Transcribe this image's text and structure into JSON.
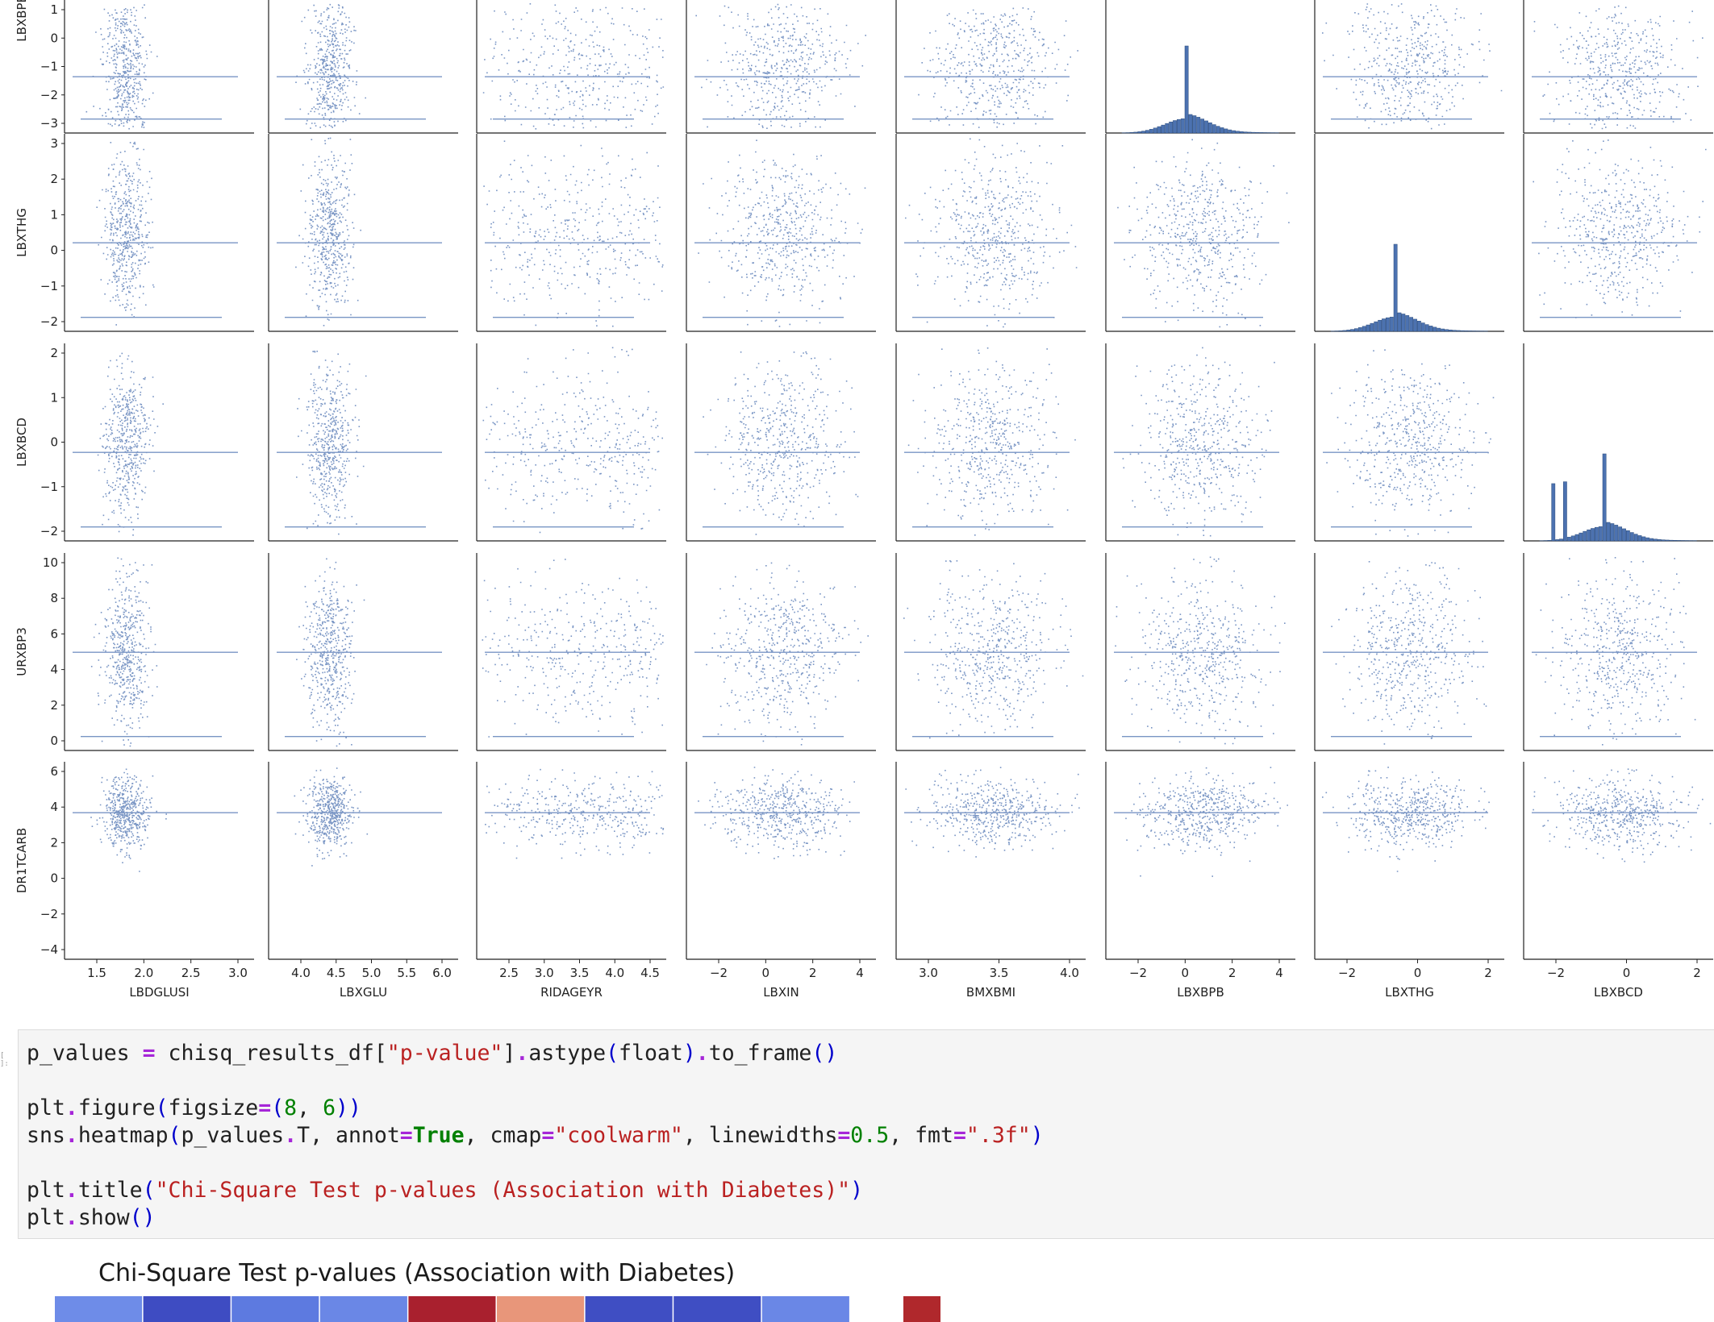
{
  "pairplot": {
    "x_labels": [
      "LBDGLUSI",
      "LBXGLU",
      "RIDAGEYR",
      "LBXIN",
      "BMXBMI",
      "LBXBPB",
      "LBXTHG",
      "LBXBCD"
    ],
    "y_labels": [
      "LBXBPB",
      "LBXTHG",
      "LBXBCD",
      "URXBP3",
      "DR1TCARB"
    ],
    "x_ticks": [
      [
        "1.5",
        "2.0",
        "2.5",
        "3.0"
      ],
      [
        "4.0",
        "4.5",
        "5.0",
        "5.5",
        "6.0"
      ],
      [
        "2.5",
        "3.0",
        "3.5",
        "4.0",
        "4.5"
      ],
      [
        "−2",
        "0",
        "2",
        "4"
      ],
      [
        "3.0",
        "3.5",
        "4.0"
      ],
      [
        "−2",
        "0",
        "2",
        "4"
      ],
      [
        "−2",
        "0",
        "2"
      ],
      [
        "−2",
        "0",
        "2"
      ]
    ],
    "y_ticks": [
      [
        "1",
        "0",
        "−1",
        "−2",
        "−3"
      ],
      [
        "3",
        "2",
        "1",
        "0",
        "−1",
        "−2"
      ],
      [
        "2",
        "1",
        "0",
        "−1",
        "−2"
      ],
      [
        "10",
        "8",
        "6",
        "4",
        "2",
        "0"
      ],
      [
        "6",
        "4",
        "2",
        "0",
        "−2",
        "−4"
      ]
    ],
    "point_color": "#4c72b0"
  },
  "code_cell": {
    "marker": "[ ]:",
    "line1": {
      "var": "p_values",
      "op": "=",
      "obj": "chisq_results_df",
      "key": "\"p-value\"",
      "m1": "astype",
      "arg": "float",
      "m2": "to_frame"
    },
    "line2": {
      "mod": "plt",
      "fn": "figure",
      "kw": "figsize",
      "v1": "8",
      "v2": "6"
    },
    "line3": {
      "mod": "sns",
      "fn": "heatmap",
      "arg": "p_values",
      "attr": "T",
      "k1": "annot",
      "v1": "True",
      "k2": "cmap",
      "v2": "\"coolwarm\"",
      "k3": "linewidths",
      "v3": "0.5",
      "k4": "fmt",
      "v4": "\".3f\""
    },
    "line4": {
      "mod": "plt",
      "fn": "title",
      "arg": "\"Chi-Square Test p-values (Association with Diabetes)\""
    },
    "line5": {
      "mod": "plt",
      "fn": "show"
    }
  },
  "heatmap": {
    "title": "Chi-Square Test p-values (Association with Diabetes)",
    "cell_colors": [
      "#6e8ce8",
      "#3e4cc2",
      "#5d7ae0",
      "#6a87e6",
      "#a9202e",
      "#e8967a",
      "#3f4ec3",
      "#3f4ec3",
      "#6a87e6",
      "",
      "#b0282c"
    ]
  }
}
